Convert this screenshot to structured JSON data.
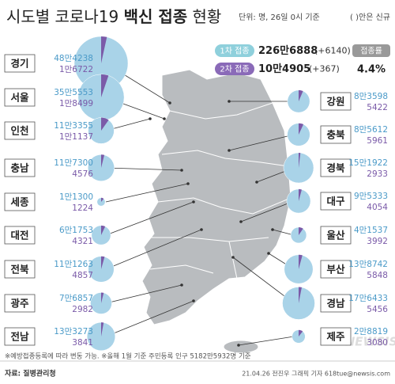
{
  "chart_data": {
    "type": "map-pie",
    "title": [
      "시도별 코로나19",
      "백신 접종",
      "현황"
    ],
    "unit_note": "단위: 명, 26일 0시 기준",
    "new_note": "( )안은 신규",
    "categories": [
      "경기",
      "서울",
      "인천",
      "충남",
      "세종",
      "대전",
      "전북",
      "광주",
      "전남",
      "강원",
      "충북",
      "경북",
      "대구",
      "울산",
      "부산",
      "경남",
      "제주"
    ],
    "series": [
      {
        "name": "1차 접종",
        "color": "#a9d3e8",
        "total": "226만6888",
        "change": "(+6140)",
        "values": [
          484238,
          355553,
          113355,
          117300,
          11300,
          61753,
          111263,
          76857,
          133273,
          83598,
          85612,
          151922,
          95333,
          41537,
          138742,
          176433,
          28819
        ],
        "value_labels": [
          "48만4238",
          "35만5553",
          "11만3355",
          "11만7300",
          "1만1300",
          "6만1753",
          "11만1263",
          "7만6857",
          "13만3273",
          "8만3598",
          "8만5612",
          "15만1922",
          "9만5333",
          "4만1537",
          "13만8742",
          "17만6433",
          "2만8819"
        ]
      },
      {
        "name": "2차 접종",
        "color": "#7b5aa8",
        "total": "10만4905",
        "change": "(+367)",
        "values": [
          16722,
          18499,
          11137,
          4576,
          1224,
          4321,
          4857,
          2982,
          3841,
          5422,
          5961,
          2933,
          4054,
          3992,
          5848,
          5456,
          3080
        ],
        "value_labels": [
          "1만6722",
          "1만8499",
          "1만1137",
          "4576",
          "1224",
          "4321",
          "4857",
          "2982",
          "3841",
          "5422",
          "5961",
          "2933",
          "4054",
          "3992",
          "5848",
          "5456",
          "3080"
        ]
      }
    ],
    "rate_label": "접종률",
    "rate": 4.4,
    "rate_label_value": "4.4%",
    "footnote": "※예방접종등록에 따라 변동 가능. ※올해 1월 기준 주민등록 인구 5182만5932명 기준",
    "source": "자료: 질병관리청",
    "credit": "21.04.26 전진우 그래픽 기자 618tue@newsis.com",
    "brand": "NEWSIS"
  }
}
